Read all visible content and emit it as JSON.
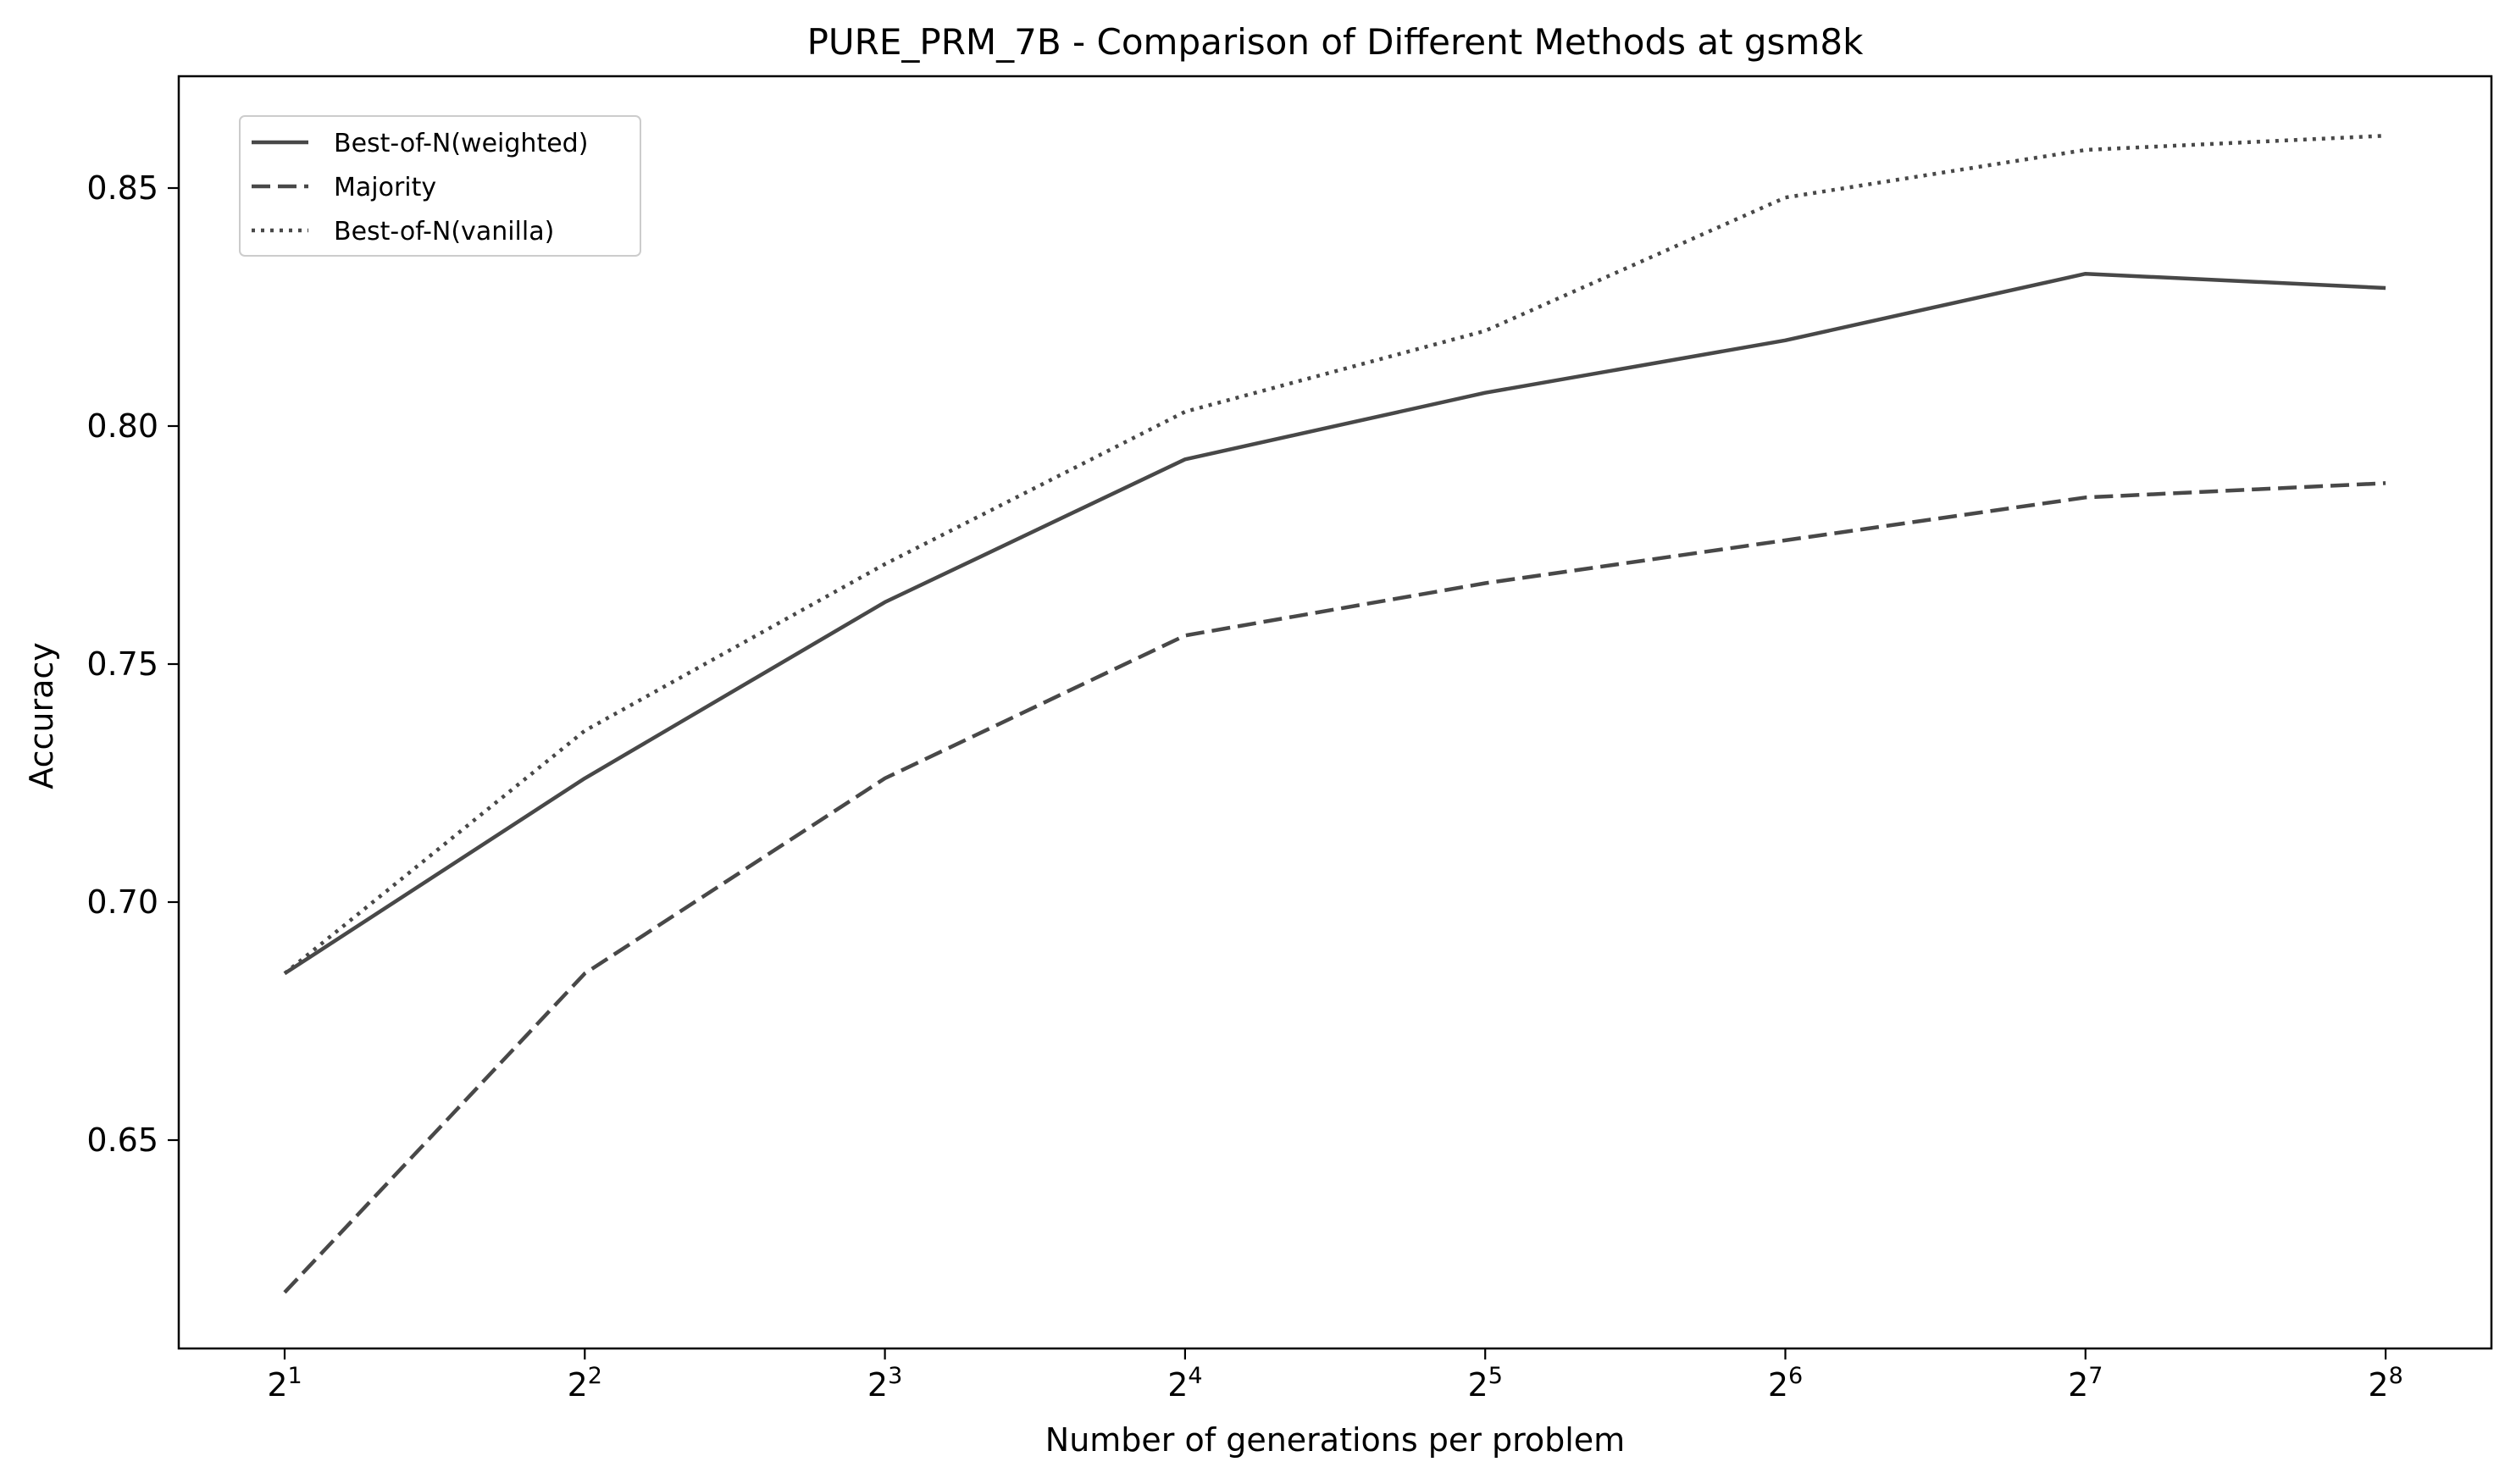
{
  "chart_data": {
    "type": "line",
    "title": "PURE_PRM_7B - Comparison of Different Methods at gsm8k",
    "xlabel": "Number of generations per problem",
    "ylabel": "Accuracy",
    "x_scale": "log2",
    "x": [
      2,
      4,
      8,
      16,
      32,
      64,
      128,
      256
    ],
    "x_tick_labels": [
      {
        "base": "2",
        "exp": "1"
      },
      {
        "base": "2",
        "exp": "2"
      },
      {
        "base": "2",
        "exp": "3"
      },
      {
        "base": "2",
        "exp": "4"
      },
      {
        "base": "2",
        "exp": "5"
      },
      {
        "base": "2",
        "exp": "6"
      },
      {
        "base": "2",
        "exp": "7"
      },
      {
        "base": "2",
        "exp": "8"
      }
    ],
    "y_ticks": [
      "0.65",
      "0.70",
      "0.75",
      "0.80",
      "0.85"
    ],
    "ylim": [
      0.605,
      0.873
    ],
    "grid": false,
    "legend_position": "top-left",
    "series": [
      {
        "name": "Best-of-N(weighted)",
        "style": "solid",
        "color": "#484848",
        "values": [
          0.685,
          0.726,
          0.763,
          0.793,
          0.807,
          0.818,
          0.832,
          0.829
        ]
      },
      {
        "name": "Majority",
        "style": "dashed",
        "color": "#484848",
        "values": [
          0.618,
          0.685,
          0.726,
          0.756,
          0.767,
          0.776,
          0.785,
          0.788
        ]
      },
      {
        "name": "Best-of-N(vanilla)",
        "style": "dotted",
        "color": "#484848",
        "values": [
          0.685,
          0.736,
          0.771,
          0.803,
          0.82,
          0.848,
          0.858,
          0.861
        ]
      }
    ]
  }
}
